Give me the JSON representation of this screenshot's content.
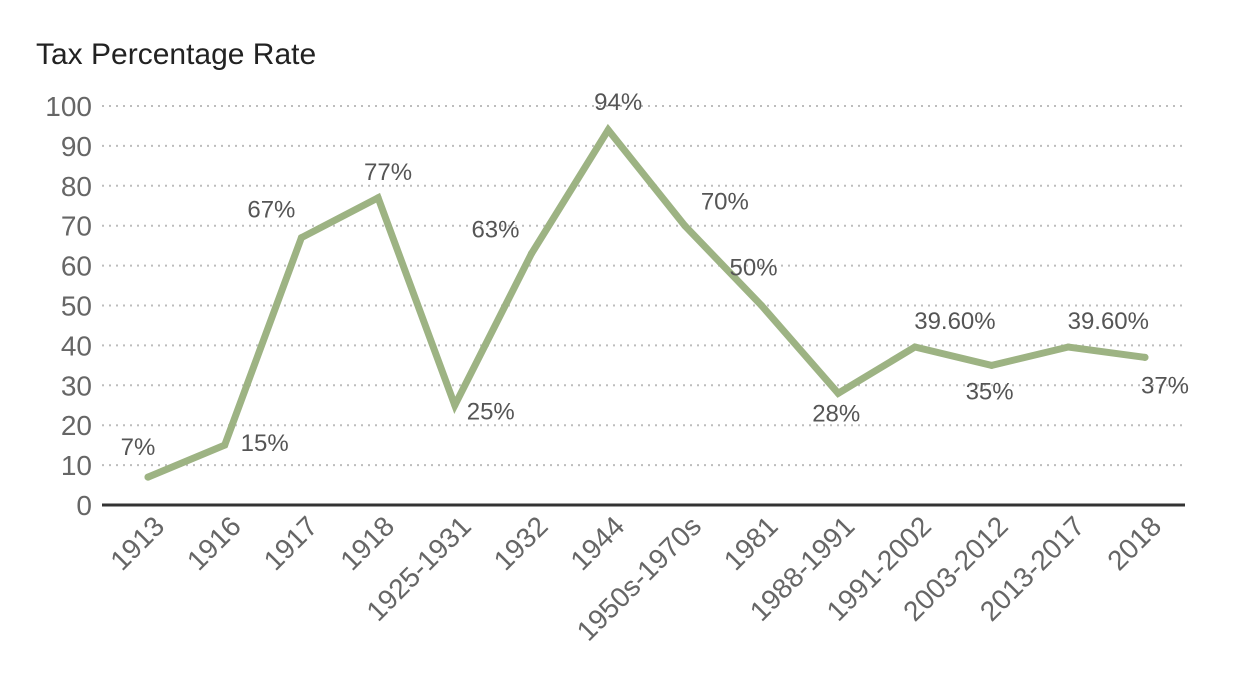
{
  "chart_data": {
    "type": "line",
    "title": "Tax Percentage Rate",
    "xlabel": "",
    "ylabel": "",
    "categories": [
      "1913",
      "1916",
      "1917",
      "1918",
      "1925-1931",
      "1932",
      "1944",
      "1950s-1970s",
      "1981",
      "1988-1991",
      "1991-2002",
      "2003-2012",
      "2013-2017",
      "2018"
    ],
    "series": [
      {
        "values": [
          7,
          15,
          67,
          77,
          25,
          63,
          94,
          70,
          50,
          28,
          39.6,
          35,
          39.6,
          37
        ]
      }
    ],
    "data_labels": [
      "7%",
      "15%",
      "67%",
      "77%",
      "25%",
      "63%",
      "94%",
      "70%",
      "50%",
      "28%",
      "39.60%",
      "35%",
      "39.60%",
      "37%"
    ],
    "ylim": [
      0,
      100
    ],
    "yticks": [
      0,
      10,
      20,
      30,
      40,
      50,
      60,
      70,
      80,
      90,
      100
    ],
    "grid": true,
    "legend": "none",
    "colors": {
      "line": "#9db383",
      "gridline": "#bdbdbd",
      "axis": "#333333",
      "tick_text": "#666666",
      "label_text": "#555555",
      "title_text": "#222222"
    }
  }
}
